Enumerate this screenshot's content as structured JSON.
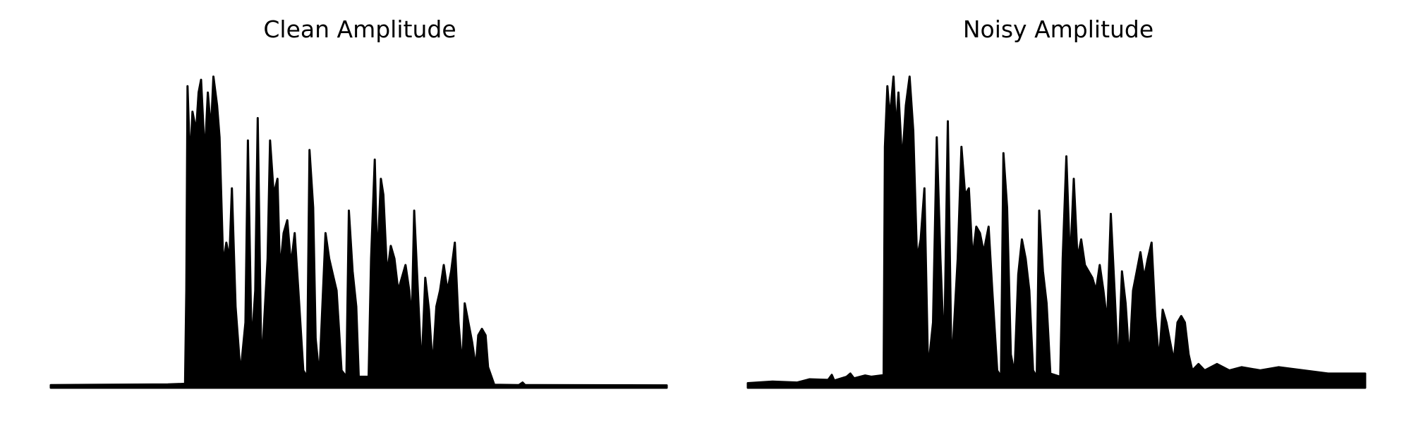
{
  "chart_data": [
    {
      "type": "area",
      "title": "Clean Amplitude",
      "xlabel": "",
      "ylabel": "",
      "axes_visible": false,
      "grid": false,
      "color": "#000000",
      "ylim": [
        0,
        1
      ],
      "envelope": [
        [
          0.0,
          0.004
        ],
        [
          0.19,
          0.006
        ],
        [
          0.218,
          0.008
        ],
        [
          0.22,
          0.3
        ],
        [
          0.222,
          0.94
        ],
        [
          0.226,
          0.7
        ],
        [
          0.23,
          0.86
        ],
        [
          0.236,
          0.8
        ],
        [
          0.24,
          0.92
        ],
        [
          0.244,
          0.96
        ],
        [
          0.25,
          0.72
        ],
        [
          0.255,
          0.92
        ],
        [
          0.26,
          0.8
        ],
        [
          0.264,
          0.97
        ],
        [
          0.27,
          0.88
        ],
        [
          0.274,
          0.78
        ],
        [
          0.28,
          0.38
        ],
        [
          0.285,
          0.45
        ],
        [
          0.29,
          0.4
        ],
        [
          0.294,
          0.62
        ],
        [
          0.3,
          0.25
        ],
        [
          0.308,
          0.04
        ],
        [
          0.316,
          0.2
        ],
        [
          0.32,
          0.77
        ],
        [
          0.326,
          0.12
        ],
        [
          0.332,
          0.3
        ],
        [
          0.336,
          0.84
        ],
        [
          0.342,
          0.05
        ],
        [
          0.352,
          0.4
        ],
        [
          0.356,
          0.77
        ],
        [
          0.362,
          0.6
        ],
        [
          0.368,
          0.65
        ],
        [
          0.372,
          0.36
        ],
        [
          0.378,
          0.48
        ],
        [
          0.384,
          0.52
        ],
        [
          0.39,
          0.38
        ],
        [
          0.396,
          0.48
        ],
        [
          0.402,
          0.3
        ],
        [
          0.41,
          0.05
        ],
        [
          0.416,
          0.03
        ],
        [
          0.42,
          0.74
        ],
        [
          0.426,
          0.56
        ],
        [
          0.43,
          0.15
        ],
        [
          0.436,
          0.03
        ],
        [
          0.442,
          0.3
        ],
        [
          0.446,
          0.48
        ],
        [
          0.452,
          0.4
        ],
        [
          0.458,
          0.35
        ],
        [
          0.464,
          0.3
        ],
        [
          0.472,
          0.05
        ],
        [
          0.48,
          0.03
        ],
        [
          0.484,
          0.55
        ],
        [
          0.49,
          0.36
        ],
        [
          0.496,
          0.25
        ],
        [
          0.5,
          0.03
        ],
        [
          0.516,
          0.03
        ],
        [
          0.52,
          0.4
        ],
        [
          0.526,
          0.71
        ],
        [
          0.53,
          0.38
        ],
        [
          0.536,
          0.65
        ],
        [
          0.54,
          0.6
        ],
        [
          0.546,
          0.35
        ],
        [
          0.552,
          0.44
        ],
        [
          0.558,
          0.4
        ],
        [
          0.564,
          0.3
        ],
        [
          0.57,
          0.34
        ],
        [
          0.576,
          0.38
        ],
        [
          0.582,
          0.3
        ],
        [
          0.586,
          0.2
        ],
        [
          0.59,
          0.55
        ],
        [
          0.596,
          0.3
        ],
        [
          0.602,
          0.05
        ],
        [
          0.608,
          0.34
        ],
        [
          0.614,
          0.24
        ],
        [
          0.62,
          0.06
        ],
        [
          0.626,
          0.25
        ],
        [
          0.632,
          0.3
        ],
        [
          0.638,
          0.38
        ],
        [
          0.644,
          0.3
        ],
        [
          0.65,
          0.36
        ],
        [
          0.656,
          0.45
        ],
        [
          0.662,
          0.2
        ],
        [
          0.668,
          0.06
        ],
        [
          0.672,
          0.26
        ],
        [
          0.678,
          0.2
        ],
        [
          0.684,
          0.14
        ],
        [
          0.69,
          0.06
        ],
        [
          0.694,
          0.16
        ],
        [
          0.7,
          0.18
        ],
        [
          0.706,
          0.16
        ],
        [
          0.71,
          0.06
        ],
        [
          0.72,
          0.005
        ],
        [
          0.76,
          0.004
        ],
        [
          0.766,
          0.012
        ],
        [
          0.77,
          0.004
        ],
        [
          1.0,
          0.003
        ]
      ]
    },
    {
      "type": "area",
      "title": "Noisy Amplitude",
      "xlabel": "",
      "ylabel": "",
      "axes_visible": false,
      "grid": false,
      "color": "#000000",
      "ylim": [
        0,
        1
      ],
      "envelope": [
        [
          0.0,
          0.01
        ],
        [
          0.04,
          0.015
        ],
        [
          0.08,
          0.012
        ],
        [
          0.1,
          0.022
        ],
        [
          0.13,
          0.02
        ],
        [
          0.136,
          0.036
        ],
        [
          0.14,
          0.018
        ],
        [
          0.16,
          0.03
        ],
        [
          0.166,
          0.04
        ],
        [
          0.172,
          0.025
        ],
        [
          0.19,
          0.034
        ],
        [
          0.2,
          0.03
        ],
        [
          0.22,
          0.035
        ],
        [
          0.222,
          0.75
        ],
        [
          0.226,
          0.94
        ],
        [
          0.23,
          0.84
        ],
        [
          0.236,
          0.97
        ],
        [
          0.24,
          0.8
        ],
        [
          0.244,
          0.92
        ],
        [
          0.25,
          0.7
        ],
        [
          0.256,
          0.88
        ],
        [
          0.262,
          0.97
        ],
        [
          0.268,
          0.8
        ],
        [
          0.274,
          0.4
        ],
        [
          0.28,
          0.46
        ],
        [
          0.286,
          0.62
        ],
        [
          0.292,
          0.05
        ],
        [
          0.3,
          0.2
        ],
        [
          0.306,
          0.78
        ],
        [
          0.312,
          0.4
        ],
        [
          0.318,
          0.1
        ],
        [
          0.324,
          0.83
        ],
        [
          0.33,
          0.05
        ],
        [
          0.34,
          0.4
        ],
        [
          0.346,
          0.75
        ],
        [
          0.352,
          0.6
        ],
        [
          0.358,
          0.62
        ],
        [
          0.364,
          0.4
        ],
        [
          0.37,
          0.5
        ],
        [
          0.376,
          0.48
        ],
        [
          0.382,
          0.42
        ],
        [
          0.39,
          0.5
        ],
        [
          0.396,
          0.3
        ],
        [
          0.404,
          0.05
        ],
        [
          0.41,
          0.03
        ],
        [
          0.414,
          0.73
        ],
        [
          0.42,
          0.56
        ],
        [
          0.426,
          0.1
        ],
        [
          0.432,
          0.04
        ],
        [
          0.438,
          0.35
        ],
        [
          0.444,
          0.46
        ],
        [
          0.45,
          0.4
        ],
        [
          0.456,
          0.3
        ],
        [
          0.462,
          0.05
        ],
        [
          0.468,
          0.03
        ],
        [
          0.472,
          0.55
        ],
        [
          0.478,
          0.36
        ],
        [
          0.484,
          0.26
        ],
        [
          0.49,
          0.04
        ],
        [
          0.506,
          0.03
        ],
        [
          0.51,
          0.4
        ],
        [
          0.516,
          0.72
        ],
        [
          0.522,
          0.38
        ],
        [
          0.528,
          0.65
        ],
        [
          0.534,
          0.4
        ],
        [
          0.54,
          0.46
        ],
        [
          0.546,
          0.38
        ],
        [
          0.552,
          0.36
        ],
        [
          0.558,
          0.34
        ],
        [
          0.564,
          0.3
        ],
        [
          0.57,
          0.38
        ],
        [
          0.576,
          0.3
        ],
        [
          0.582,
          0.2
        ],
        [
          0.588,
          0.54
        ],
        [
          0.594,
          0.3
        ],
        [
          0.6,
          0.05
        ],
        [
          0.606,
          0.36
        ],
        [
          0.612,
          0.26
        ],
        [
          0.618,
          0.08
        ],
        [
          0.624,
          0.3
        ],
        [
          0.63,
          0.36
        ],
        [
          0.636,
          0.42
        ],
        [
          0.642,
          0.34
        ],
        [
          0.648,
          0.4
        ],
        [
          0.654,
          0.45
        ],
        [
          0.66,
          0.22
        ],
        [
          0.666,
          0.08
        ],
        [
          0.672,
          0.24
        ],
        [
          0.678,
          0.2
        ],
        [
          0.684,
          0.14
        ],
        [
          0.69,
          0.08
        ],
        [
          0.696,
          0.2
        ],
        [
          0.702,
          0.22
        ],
        [
          0.708,
          0.2
        ],
        [
          0.714,
          0.1
        ],
        [
          0.72,
          0.05
        ],
        [
          0.73,
          0.07
        ],
        [
          0.74,
          0.05
        ],
        [
          0.76,
          0.07
        ],
        [
          0.78,
          0.05
        ],
        [
          0.8,
          0.06
        ],
        [
          0.83,
          0.05
        ],
        [
          0.86,
          0.06
        ],
        [
          0.9,
          0.05
        ],
        [
          0.94,
          0.04
        ],
        [
          1.0,
          0.04
        ]
      ]
    }
  ]
}
